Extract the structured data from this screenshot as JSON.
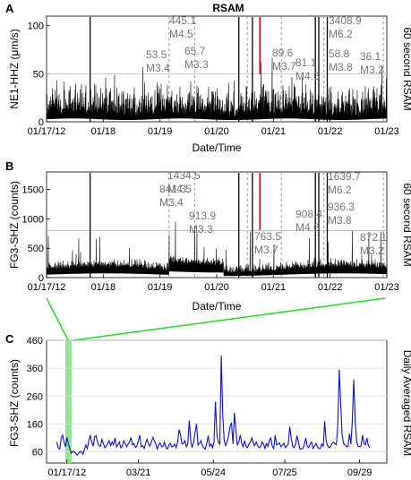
{
  "figure_title": "RSAM",
  "chart_data": [
    {
      "panel": "A",
      "type": "line",
      "title": "RSAM",
      "xlabel": "Date/Time",
      "ylabel": "NE1-HHZ (μm/s)",
      "right_label": "60 second RSAM",
      "x_ticks": [
        "01/17/12",
        "01/18",
        "01/19",
        "01/20",
        "01/21",
        "01/22",
        "01/23"
      ],
      "ylim": [
        0,
        110
      ],
      "y_ticks": [
        "0",
        "50",
        "100"
      ],
      "reference_line": 50,
      "annotations": [
        {
          "value": "445.1",
          "magnitude": "M4.5"
        },
        {
          "value": "53.5",
          "magnitude": "M3.4"
        },
        {
          "value": "65.7",
          "magnitude": "M3.3"
        },
        {
          "value": "89.6",
          "magnitude": "M3.7"
        },
        {
          "value": "81.1",
          "magnitude": "M4.6"
        },
        {
          "value": "3408.9",
          "magnitude": "M6.2"
        },
        {
          "value": "58.8",
          "magnitude": "M3.8"
        },
        {
          "value": "36.1",
          "magnitude": "M3.2"
        }
      ],
      "highlight_color": "#d22020",
      "line_color": "#000000"
    },
    {
      "panel": "B",
      "type": "line",
      "title": "",
      "xlabel": "Date/Time",
      "ylabel": "FG3-SHZ (counts)",
      "right_label": "60 second RSAM",
      "x_ticks": [
        "01/17/12",
        "01/18",
        "01/19",
        "01/20",
        "01/21",
        "01/22",
        "01/23"
      ],
      "ylim": [
        0,
        1800
      ],
      "y_ticks": [
        "0",
        "500",
        "1000",
        "1500"
      ],
      "reference_line": 800,
      "annotations": [
        {
          "value": "841.3",
          "magnitude": "M3.4"
        },
        {
          "value": "1434.5",
          "magnitude": "M4.5"
        },
        {
          "value": "913.9",
          "magnitude": "M3.3"
        },
        {
          "value": "763.5",
          "magnitude": "M3.7"
        },
        {
          "value": "908.4",
          "magnitude": "M4.6"
        },
        {
          "value": "1639.7",
          "magnitude": "M6.2"
        },
        {
          "value": "936.3",
          "magnitude": "M3.8"
        },
        {
          "value": "872.1",
          "magnitude": "M3.2"
        }
      ],
      "highlight_color": "#d22020",
      "line_color": "#000000"
    },
    {
      "panel": "C",
      "type": "line",
      "title": "",
      "xlabel": "",
      "ylabel": "FG3-SHZ (counts)",
      "right_label": "Daily Averaged RSAM",
      "x_ticks": [
        "01/17/12",
        "03/21",
        "05/24",
        "07/25",
        "09/29"
      ],
      "ylim": [
        0,
        460
      ],
      "y_ticks": [
        "60",
        "160",
        "260",
        "360",
        "460"
      ],
      "highlight_color": "#7ee87e",
      "line_color": "#1010d0",
      "series": [
        {
          "values": [
            95,
            75,
            70,
            108,
            120,
            95,
            78,
            112,
            90,
            70,
            55,
            62,
            60,
            55,
            48,
            55,
            62,
            58,
            52,
            68,
            85,
            72,
            100,
            120,
            95,
            80,
            115,
            118,
            95,
            82,
            80,
            105,
            90,
            75,
            80,
            90,
            100,
            82,
            95,
            85,
            110,
            78,
            85,
            95,
            75,
            80,
            100,
            90,
            78,
            88,
            95,
            112,
            85,
            90,
            76,
            80,
            98,
            120,
            78,
            82,
            72,
            90,
            105,
            88,
            80,
            95,
            112,
            100,
            88,
            70,
            85,
            92,
            78,
            80,
            95,
            75,
            70,
            85,
            90,
            78,
            80,
            88,
            75,
            95,
            140,
            120,
            88,
            90,
            100,
            78,
            88,
            172,
            100,
            75,
            95,
            130,
            160,
            85,
            90,
            100,
            82,
            75,
            70,
            90,
            118,
            80,
            88,
            75,
            95,
            240,
            120,
            95,
            88,
            405,
            190,
            100,
            82,
            95,
            118,
            150,
            165,
            88,
            200,
            140,
            85,
            95,
            120,
            92,
            78,
            100,
            80,
            75,
            88,
            95,
            110,
            90,
            82,
            95,
            82,
            75,
            78,
            95,
            88,
            72,
            90,
            80,
            100,
            110,
            80,
            72,
            120,
            85,
            88,
            92,
            78,
            85,
            90,
            75,
            80,
            88,
            150,
            110,
            80,
            75,
            88,
            118,
            95,
            70,
            70,
            72,
            85,
            110,
            80,
            75,
            88,
            95,
            72,
            80,
            90,
            78,
            72,
            72,
            88,
            80,
            170,
            100,
            82,
            75,
            78,
            90,
            95,
            90,
            85,
            155,
            355,
            230,
            120,
            90,
            85,
            78,
            80,
            125,
            88,
            175,
            320,
            170,
            95,
            80,
            78,
            82,
            120,
            90,
            85,
            110,
            82,
            75
          ]
        }
      ]
    }
  ]
}
